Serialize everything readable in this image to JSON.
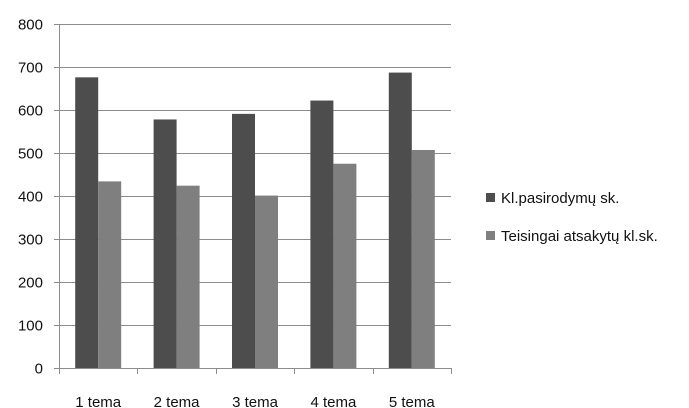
{
  "chart_data": {
    "type": "bar",
    "categories": [
      "1 tema",
      "2 tema",
      "3 tema",
      "4 tema",
      "5 tema"
    ],
    "series": [
      {
        "name": "Kl.pasirodymų sk.",
        "values": [
          676,
          578,
          591,
          622,
          687
        ],
        "color": "#4d4d4d"
      },
      {
        "name": "Teisingai atsakytų kl.sk.",
        "values": [
          434,
          424,
          401,
          475,
          507
        ],
        "color": "#7f7f7f"
      }
    ],
    "ylim": [
      0,
      800
    ],
    "yticks": [
      0,
      100,
      200,
      300,
      400,
      500,
      600,
      700,
      800
    ],
    "grid": true,
    "legend": "right",
    "title": "",
    "xlabel": "",
    "ylabel": ""
  }
}
